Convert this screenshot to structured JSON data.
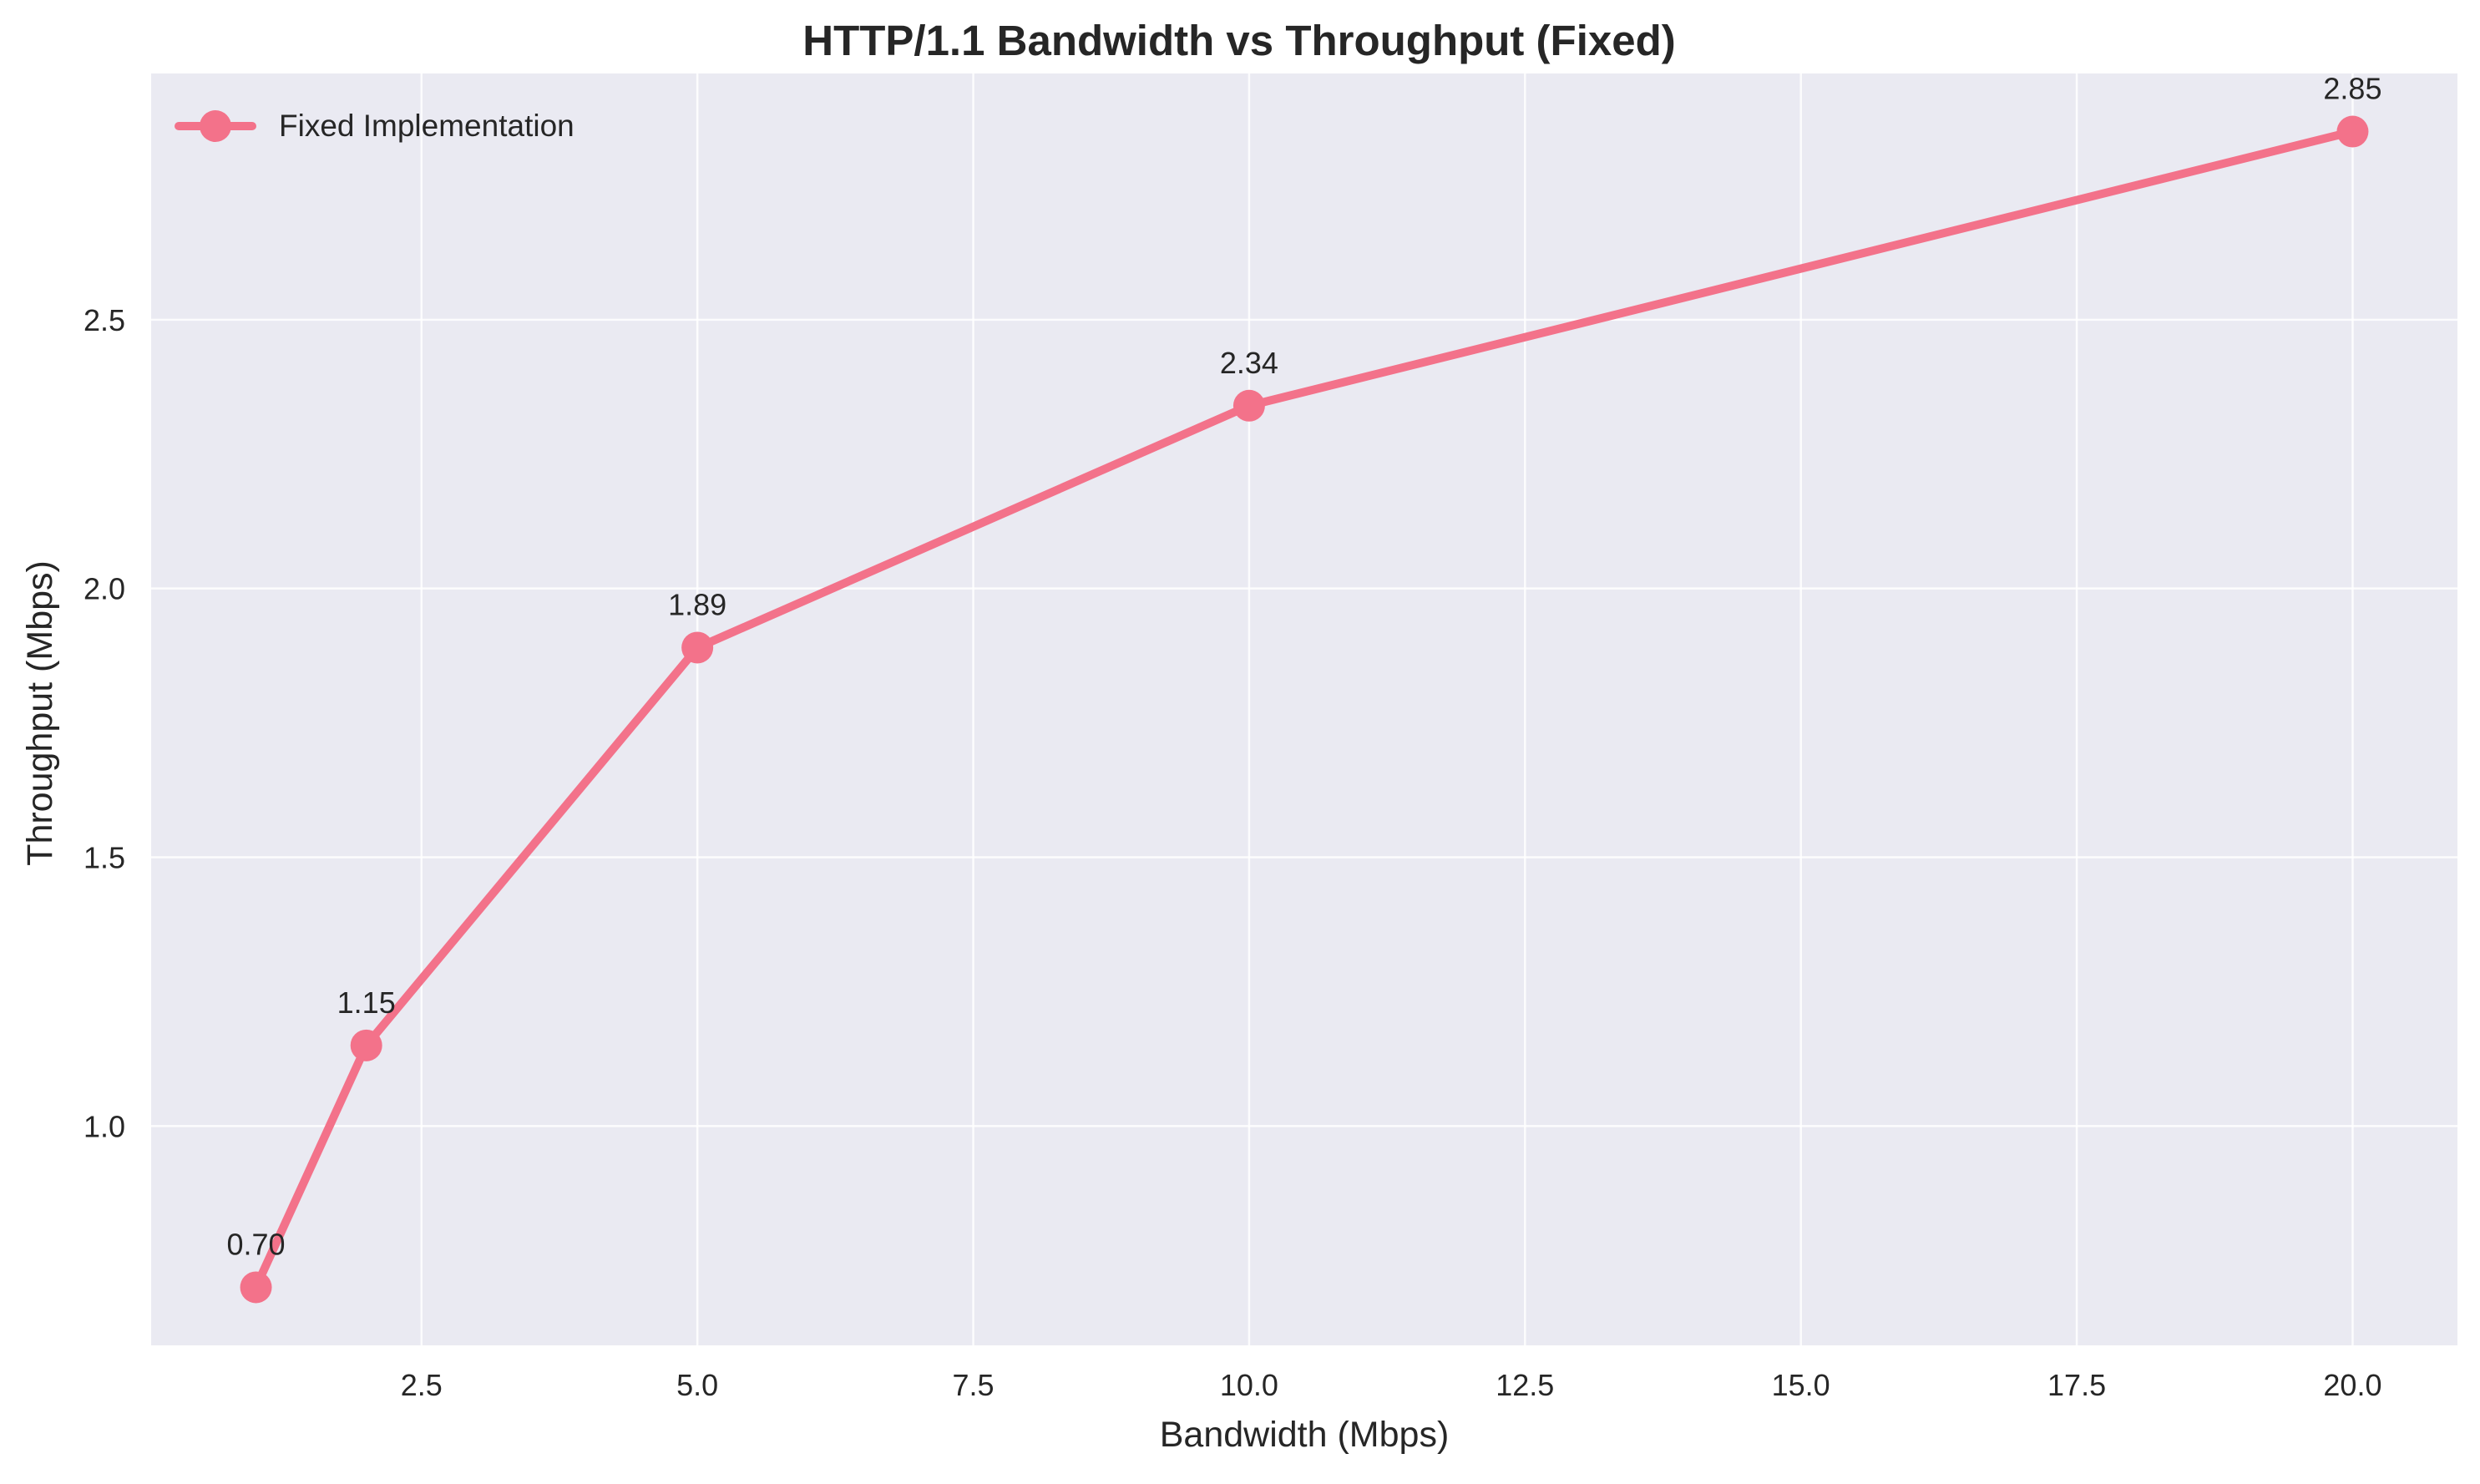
{
  "chart_data": {
    "type": "line",
    "title": "HTTP/1.1 Bandwidth vs Throughput (Fixed)",
    "xlabel": "Bandwidth (Mbps)",
    "ylabel": "Throughput (Mbps)",
    "xlim": [
      0.05,
      20.95
    ],
    "ylim": [
      0.592,
      2.958
    ],
    "xticks": [
      2.5,
      5.0,
      7.5,
      10.0,
      12.5,
      15.0,
      17.5,
      20.0
    ],
    "xtick_labels": [
      "2.5",
      "5.0",
      "7.5",
      "10.0",
      "12.5",
      "15.0",
      "17.5",
      "20.0"
    ],
    "yticks": [
      1.0,
      1.5,
      2.0,
      2.5
    ],
    "ytick_labels": [
      "1.0",
      "1.5",
      "2.0",
      "2.5"
    ],
    "grid": true,
    "legend_position": "upper-left",
    "series": [
      {
        "name": "Fixed Implementation",
        "color": "#f3728a",
        "marker": "circle",
        "x": [
          1,
          2,
          5,
          10,
          20
        ],
        "y": [
          0.7,
          1.15,
          1.89,
          2.34,
          2.85
        ],
        "labels": [
          "0.70",
          "1.15",
          "1.89",
          "2.34",
          "2.85"
        ]
      }
    ],
    "colors": {
      "plot_background": "#eaeaf2",
      "grid": "#ffffff",
      "text": "#262626"
    }
  }
}
